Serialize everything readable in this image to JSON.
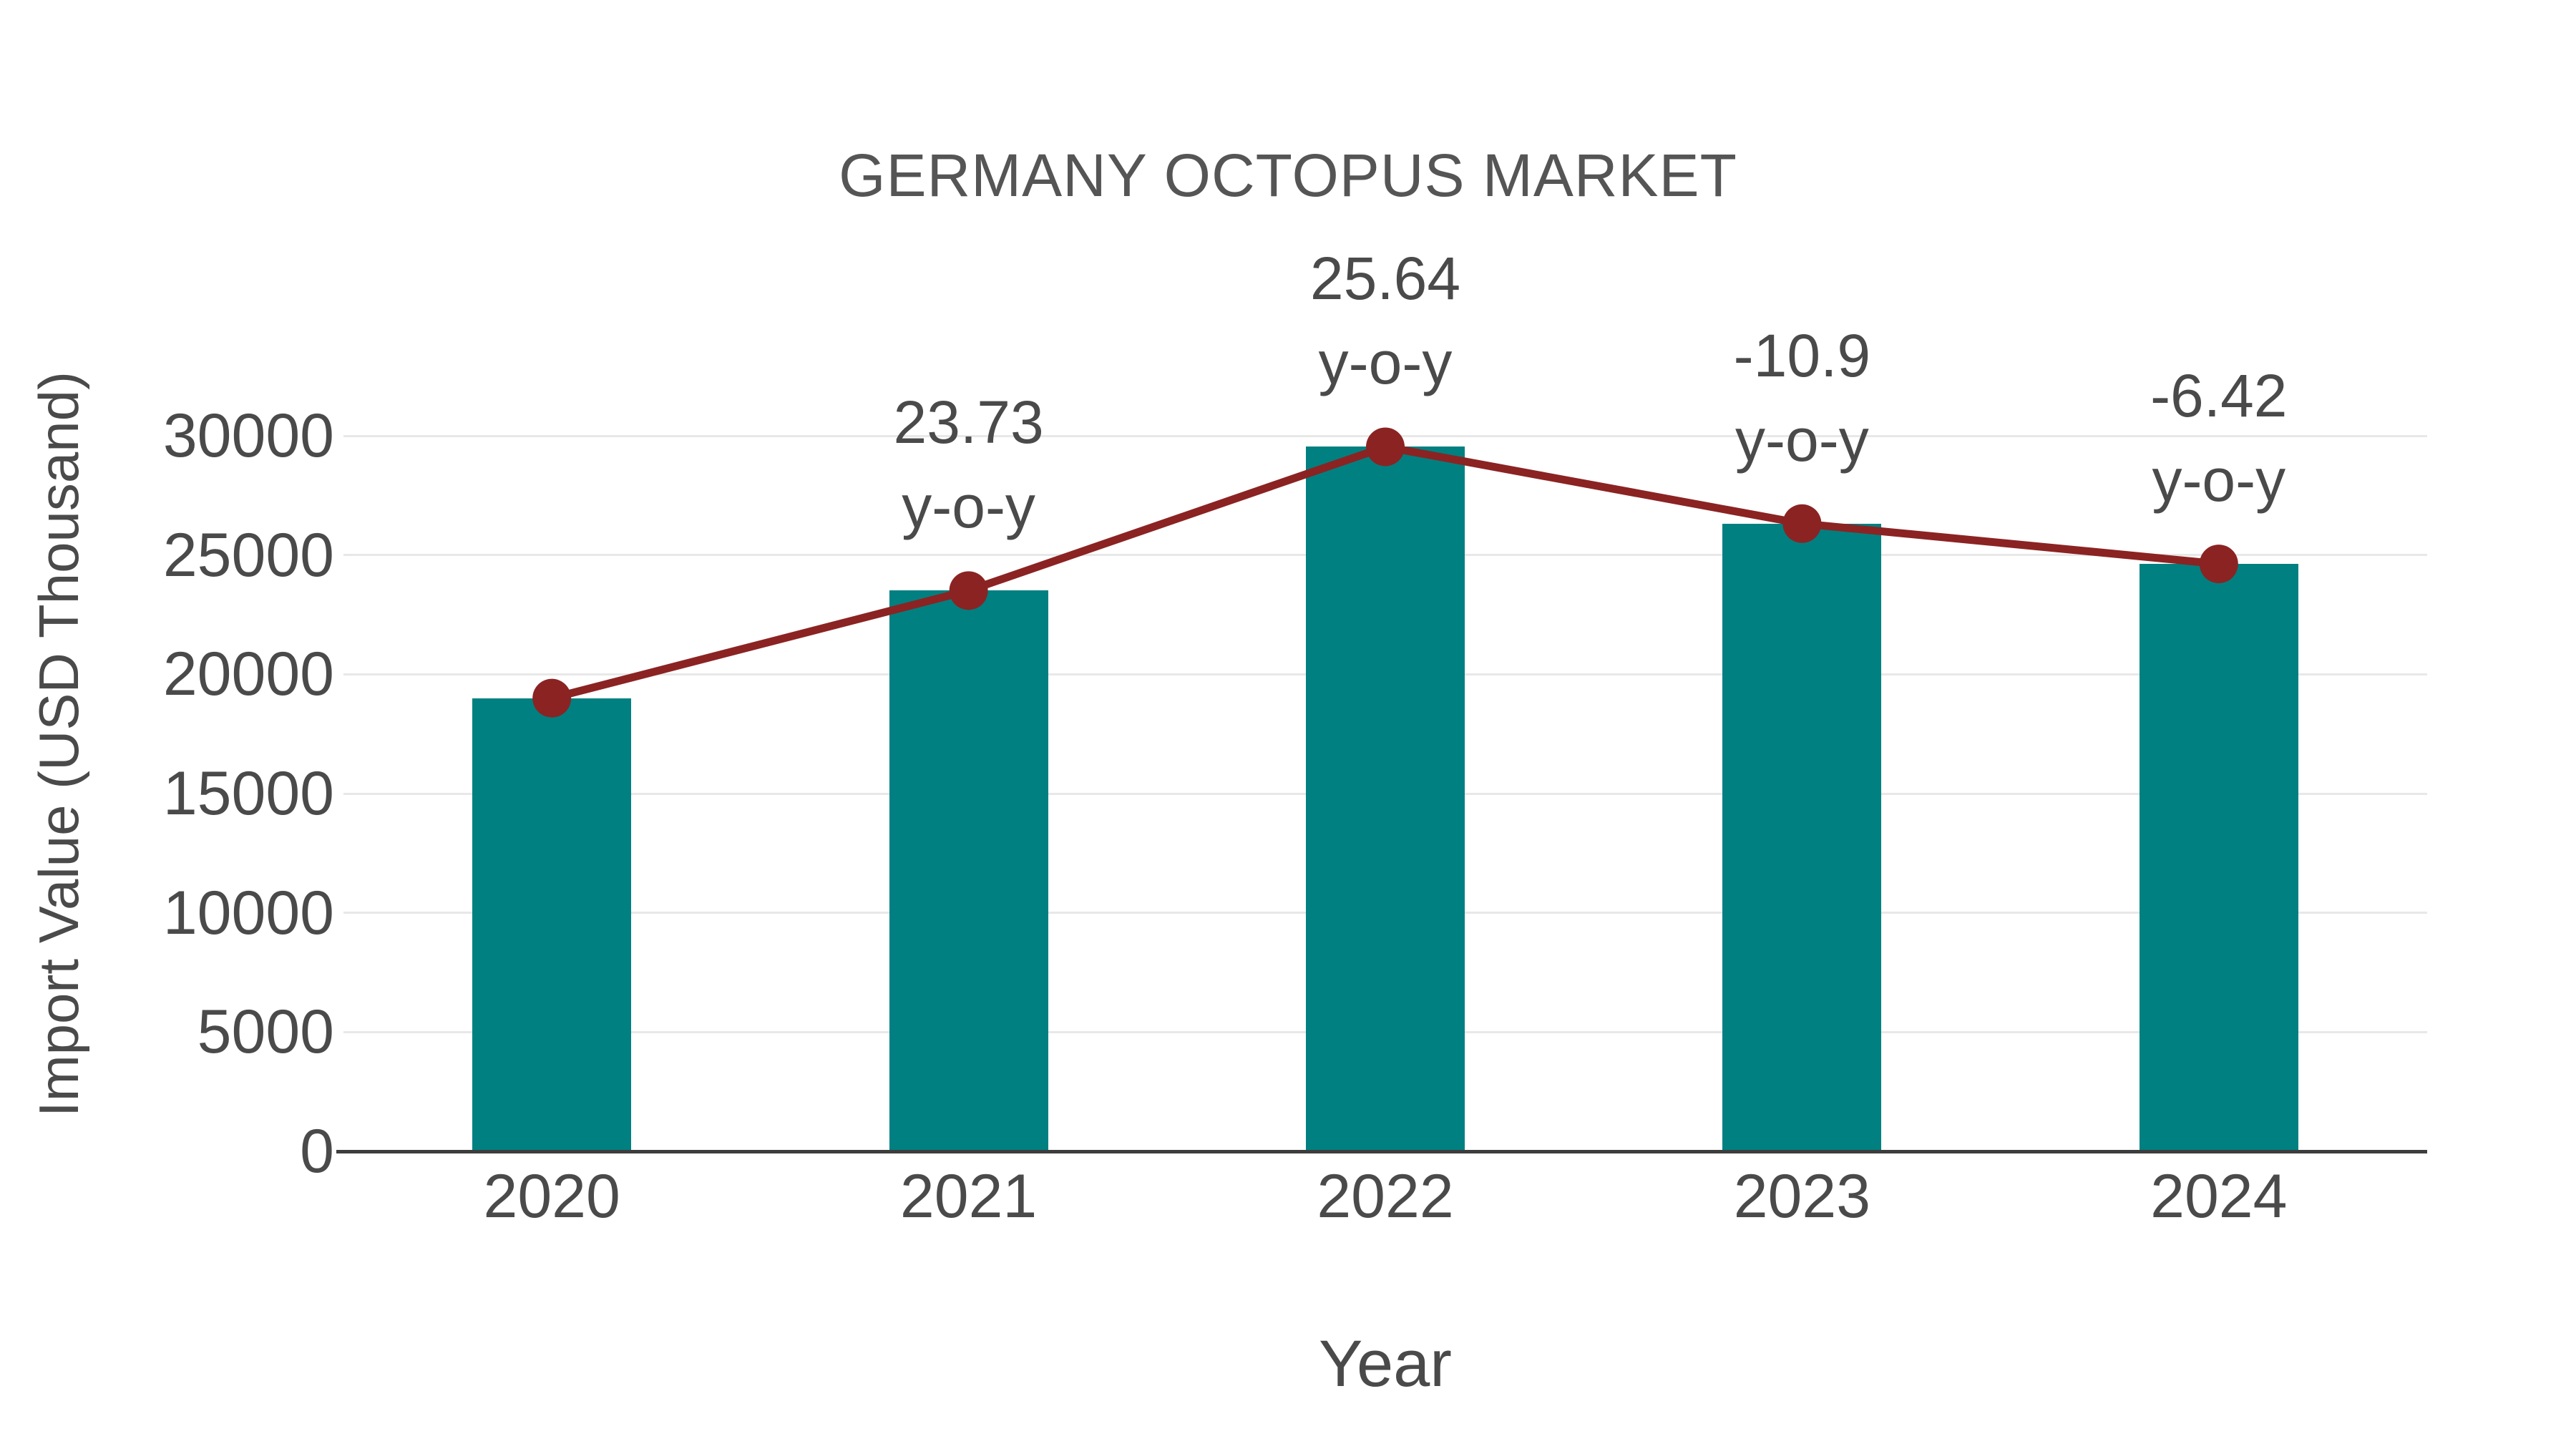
{
  "figure": {
    "title": "GERMANY OCTOPUS MARKET",
    "xlabel": "Year",
    "ylabel": "Import Value (USD Thousand)"
  },
  "chart_data": {
    "type": "bar",
    "title": "GERMANY OCTOPUS MARKET",
    "xlabel": "Year",
    "ylabel": "Import Value (USD Thousand)",
    "categories": [
      "2020",
      "2021",
      "2022",
      "2023",
      "2024"
    ],
    "series": [
      {
        "name": "Import Value (USD Thousand)",
        "type": "bar",
        "color": "#008080",
        "values": [
          19000,
          23509,
          29536,
          26317,
          24627
        ]
      },
      {
        "name": "y-o-y trend line",
        "type": "line",
        "color": "#8B2323",
        "values": [
          19000,
          23509,
          29536,
          26317,
          24627
        ]
      }
    ],
    "annotations": [
      {
        "category": "2021",
        "value_label": "23.73",
        "suffix": "y-o-y"
      },
      {
        "category": "2022",
        "value_label": "25.64",
        "suffix": "y-o-y"
      },
      {
        "category": "2023",
        "value_label": "-10.9",
        "suffix": "y-o-y"
      },
      {
        "category": "2024",
        "value_label": "-6.42",
        "suffix": "y-o-y"
      }
    ],
    "ylim": [
      0,
      30000
    ],
    "yticks": [
      0,
      5000,
      10000,
      15000,
      20000,
      25000,
      30000
    ],
    "grid": true,
    "legend": "none"
  },
  "colors": {
    "bar": "#008080",
    "line": "#8B2323",
    "grid": "#E8E8E8",
    "axis": "#3D3D3D",
    "text": "#4A4A4A",
    "title": "#555555",
    "background": "#FFFFFF"
  }
}
